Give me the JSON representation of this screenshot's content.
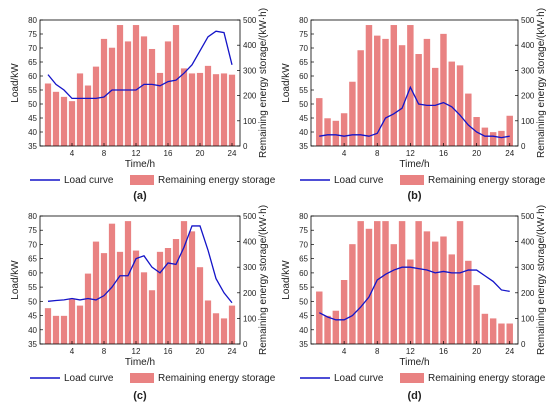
{
  "chart_data": [
    {
      "type": "bar",
      "panel_label": "(a)",
      "xlabel": "Time/h",
      "ylabel_left": "Load/kW",
      "ylabel_right": "Remaining energy storage/(kW·h)",
      "x_ticks": [
        "4",
        "8",
        "12",
        "16",
        "20",
        "24"
      ],
      "y_left_ticks": [
        "35",
        "40",
        "45",
        "50",
        "55",
        "60",
        "65",
        "70",
        "75",
        "80"
      ],
      "y_right_ticks": [
        "0",
        "100",
        "200",
        "300",
        "400",
        "500"
      ],
      "xlim": [
        0,
        25
      ],
      "ylim_left": [
        35,
        80
      ],
      "ylim_right": [
        0,
        500
      ],
      "legend": [
        "Load curve",
        "Remaining energy storage"
      ],
      "categories": [
        1,
        2,
        3,
        4,
        5,
        6,
        7,
        8,
        9,
        10,
        11,
        12,
        13,
        14,
        15,
        16,
        17,
        18,
        19,
        20,
        21,
        22,
        23,
        24
      ],
      "series": [
        {
          "name": "Remaining energy storage",
          "axis": "right",
          "values": [
            248,
            215,
            195,
            178,
            288,
            240,
            315,
            425,
            390,
            480,
            415,
            480,
            435,
            385,
            290,
            415,
            480,
            308,
            288,
            290,
            318,
            285,
            288,
            283
          ]
        },
        {
          "name": "Load curve",
          "axis": "left",
          "values": [
            60.5,
            57,
            55,
            52,
            52,
            52,
            52,
            52.5,
            55,
            55,
            55,
            55,
            57,
            57,
            56.5,
            58,
            58.5,
            61,
            64,
            69,
            74,
            76,
            75.5,
            64
          ]
        }
      ]
    },
    {
      "type": "bar",
      "panel_label": "(b)",
      "xlabel": "Time/h",
      "ylabel_left": "Load/kW",
      "ylabel_right": "Remaining energy storage/(kW·h)",
      "x_ticks": [
        "4",
        "8",
        "12",
        "16",
        "20",
        "24"
      ],
      "y_left_ticks": [
        "35",
        "40",
        "45",
        "50",
        "55",
        "60",
        "65",
        "70",
        "75",
        "80"
      ],
      "y_right_ticks": [
        "0",
        "100",
        "200",
        "300",
        "400",
        "500"
      ],
      "xlim": [
        0,
        25
      ],
      "ylim_left": [
        35,
        80
      ],
      "ylim_right": [
        0,
        500
      ],
      "legend": [
        "Load curve",
        "Remaining energy storage"
      ],
      "categories": [
        1,
        2,
        3,
        4,
        5,
        6,
        7,
        8,
        9,
        10,
        11,
        12,
        13,
        14,
        15,
        16,
        17,
        18,
        19,
        20,
        21,
        22,
        23,
        24
      ],
      "series": [
        {
          "name": "Remaining energy storage",
          "axis": "right",
          "values": [
            190,
            110,
            100,
            130,
            255,
            380,
            480,
            438,
            425,
            480,
            400,
            480,
            365,
            425,
            310,
            445,
            335,
            320,
            208,
            115,
            73,
            55,
            60,
            120
          ]
        },
        {
          "name": "Load curve",
          "axis": "left",
          "values": [
            38.5,
            39,
            39,
            38.5,
            39,
            39,
            38.5,
            39.5,
            45,
            46.5,
            48.5,
            56,
            50,
            49.5,
            49.5,
            50.5,
            49,
            46,
            42.5,
            40,
            38.5,
            38.5,
            38,
            38.5
          ]
        }
      ]
    },
    {
      "type": "bar",
      "panel_label": "(c)",
      "xlabel": "Time/h",
      "ylabel_left": "Load/kW",
      "ylabel_right": "Remaining energy storage/(kW·h)",
      "x_ticks": [
        "4",
        "8",
        "12",
        "16",
        "20",
        "24"
      ],
      "y_left_ticks": [
        "35",
        "40",
        "45",
        "50",
        "55",
        "60",
        "65",
        "70",
        "75",
        "80"
      ],
      "y_right_ticks": [
        "0",
        "100",
        "200",
        "300",
        "400",
        "500"
      ],
      "xlim": [
        0,
        25
      ],
      "ylim_left": [
        35,
        80
      ],
      "ylim_right": [
        0,
        500
      ],
      "legend": [
        "Load curve",
        "Remaining energy storage"
      ],
      "categories": [
        1,
        2,
        3,
        4,
        5,
        6,
        7,
        8,
        9,
        10,
        11,
        12,
        13,
        14,
        15,
        16,
        17,
        18,
        19,
        20,
        21,
        22,
        23,
        24
      ],
      "series": [
        {
          "name": "Remaining energy storage",
          "axis": "right",
          "values": [
            140,
            110,
            110,
            175,
            150,
            275,
            400,
            355,
            470,
            360,
            480,
            365,
            280,
            210,
            360,
            375,
            410,
            480,
            440,
            300,
            170,
            120,
            100,
            150
          ]
        },
        {
          "name": "Load curve",
          "axis": "left",
          "values": [
            50,
            50.3,
            50.5,
            51,
            50.5,
            51,
            50.5,
            52,
            55,
            59,
            59,
            65,
            66,
            62,
            60,
            63.5,
            63,
            69,
            76.5,
            76.5,
            68,
            58,
            53,
            49.5
          ]
        }
      ]
    },
    {
      "type": "bar",
      "panel_label": "(d)",
      "xlabel": "Time/h",
      "ylabel_left": "Load/kW",
      "ylabel_right": "Remaining energy storage/(kW·h)",
      "x_ticks": [
        "4",
        "8",
        "12",
        "16",
        "20",
        "24"
      ],
      "y_left_ticks": [
        "35",
        "40",
        "45",
        "50",
        "55",
        "60",
        "65",
        "70",
        "75",
        "80"
      ],
      "y_right_ticks": [
        "0",
        "100",
        "200",
        "300",
        "400",
        "500"
      ],
      "xlim": [
        0,
        25
      ],
      "ylim_left": [
        35,
        80
      ],
      "ylim_right": [
        0,
        500
      ],
      "legend": [
        "Load curve",
        "Remaining energy storage"
      ],
      "categories": [
        1,
        2,
        3,
        4,
        5,
        6,
        7,
        8,
        9,
        10,
        11,
        12,
        13,
        14,
        15,
        16,
        17,
        18,
        19,
        20,
        21,
        22,
        23,
        24
      ],
      "series": [
        {
          "name": "Remaining energy storage",
          "axis": "right",
          "values": [
            205,
            110,
            130,
            250,
            390,
            480,
            450,
            480,
            480,
            390,
            480,
            330,
            480,
            440,
            400,
            420,
            350,
            480,
            325,
            230,
            118,
            100,
            80,
            80
          ]
        },
        {
          "name": "Load curve",
          "axis": "left",
          "values": [
            46,
            44.5,
            43.5,
            43.5,
            45,
            48,
            51.5,
            57.5,
            59.5,
            61,
            62,
            62,
            61.5,
            61,
            60,
            60.5,
            60,
            60,
            61,
            61,
            59,
            57,
            54,
            53.5
          ]
        }
      ]
    }
  ]
}
